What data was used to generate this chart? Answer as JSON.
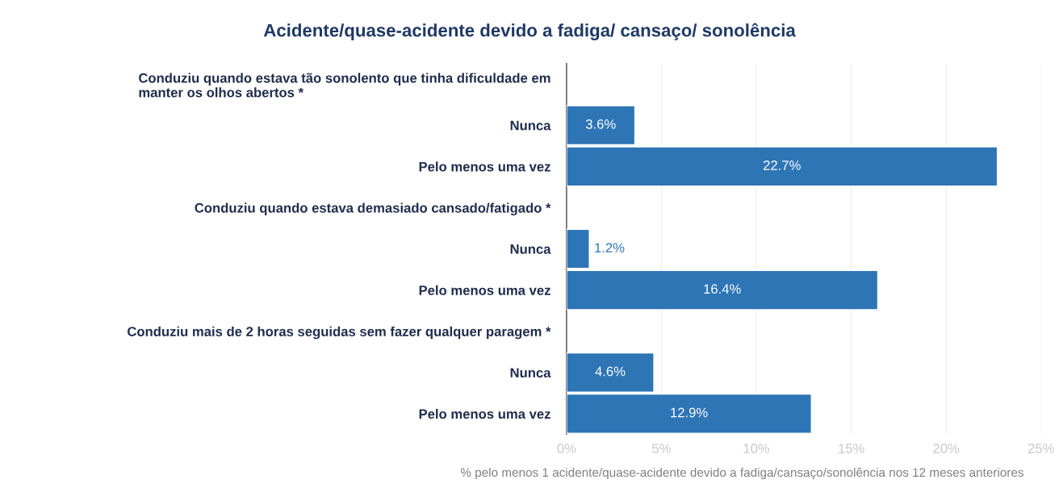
{
  "chart_data": {
    "type": "bar",
    "orientation": "horizontal",
    "title": "Acidente/quase-acidente devido a fadiga/ cansaço/ sonolência",
    "xlabel": "% pelo menos 1 acidente/quase-acidente devido a fadiga/cansaço/sonolência nos 12 meses anteriores",
    "categories": [
      "Conduziu quando estava tão sonolento que tinha dificuldade em\nmanter os olhos abertos *",
      "Nunca",
      "Pelo menos uma vez",
      "Conduziu quando estava demasiado cansado/fatigado *",
      "Nunca",
      "Pelo menos uma vez",
      "Conduziu mais de 2 horas seguidas sem fazer qualquer paragem *",
      "Nunca",
      "Pelo menos uma vez"
    ],
    "values": [
      null,
      3.6,
      22.7,
      null,
      1.2,
      16.4,
      null,
      4.6,
      12.9
    ],
    "value_labels": [
      null,
      "3.6%",
      "22.7%",
      null,
      "1.2%",
      "16.4%",
      null,
      "4.6%",
      "12.9%"
    ],
    "color": "#2e75b6",
    "xlim": [
      0,
      25
    ],
    "xticks": [
      {
        "value": 0,
        "label": "0%"
      },
      {
        "value": 5,
        "label": "5%"
      },
      {
        "value": 10,
        "label": "10%"
      },
      {
        "value": 15,
        "label": "15%"
      },
      {
        "value": 20,
        "label": "20%"
      },
      {
        "value": 25,
        "label": "25%"
      }
    ],
    "grid": "x"
  }
}
